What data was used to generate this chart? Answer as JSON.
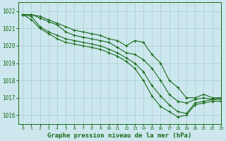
{
  "title": "Graphe pression niveau de la mer (hPa)",
  "bg_color": "#cce8ee",
  "grid_color": "#aacccc",
  "line_color": "#1a6b1a",
  "xlim": [
    -0.5,
    23
  ],
  "ylim": [
    1015.5,
    1022.5
  ],
  "yticks": [
    1016,
    1017,
    1018,
    1019,
    1020,
    1021,
    1022
  ],
  "xticks": [
    0,
    1,
    2,
    3,
    4,
    5,
    6,
    7,
    8,
    9,
    10,
    11,
    12,
    13,
    14,
    15,
    16,
    17,
    18,
    19,
    20,
    21,
    22,
    23
  ],
  "series": [
    [
      1021.8,
      1021.8,
      1021.7,
      1021.5,
      1021.3,
      1021.1,
      1020.9,
      1020.8,
      1020.7,
      1020.6,
      1020.4,
      1020.3,
      1020.0,
      1020.3,
      1020.2,
      1019.5,
      1019.0,
      1018.0,
      1017.6,
      1017.0,
      1017.0,
      1017.2,
      1017.0,
      1017.0
    ],
    [
      1021.8,
      1021.8,
      1021.6,
      1021.4,
      1021.2,
      1020.8,
      1020.6,
      1020.5,
      1020.4,
      1020.3,
      1020.2,
      1019.9,
      1019.6,
      1019.5,
      1019.2,
      1018.7,
      1018.0,
      1017.2,
      1016.8,
      1016.7,
      1016.9,
      1017.0,
      1016.9,
      1017.0
    ],
    [
      1021.8,
      1021.7,
      1021.1,
      1020.8,
      1020.6,
      1020.4,
      1020.3,
      1020.2,
      1020.1,
      1020.0,
      1019.8,
      1019.6,
      1019.3,
      1019.0,
      1018.5,
      1017.7,
      1017.1,
      1016.6,
      1016.2,
      1016.1,
      1016.7,
      1016.8,
      1016.9,
      1016.9
    ],
    [
      1021.8,
      1021.5,
      1021.0,
      1020.7,
      1020.4,
      1020.2,
      1020.1,
      1020.0,
      1019.9,
      1019.8,
      1019.6,
      1019.4,
      1019.1,
      1018.7,
      1018.0,
      1017.1,
      1016.5,
      1016.2,
      1015.9,
      1016.0,
      1016.6,
      1016.7,
      1016.8,
      1016.8
    ]
  ]
}
